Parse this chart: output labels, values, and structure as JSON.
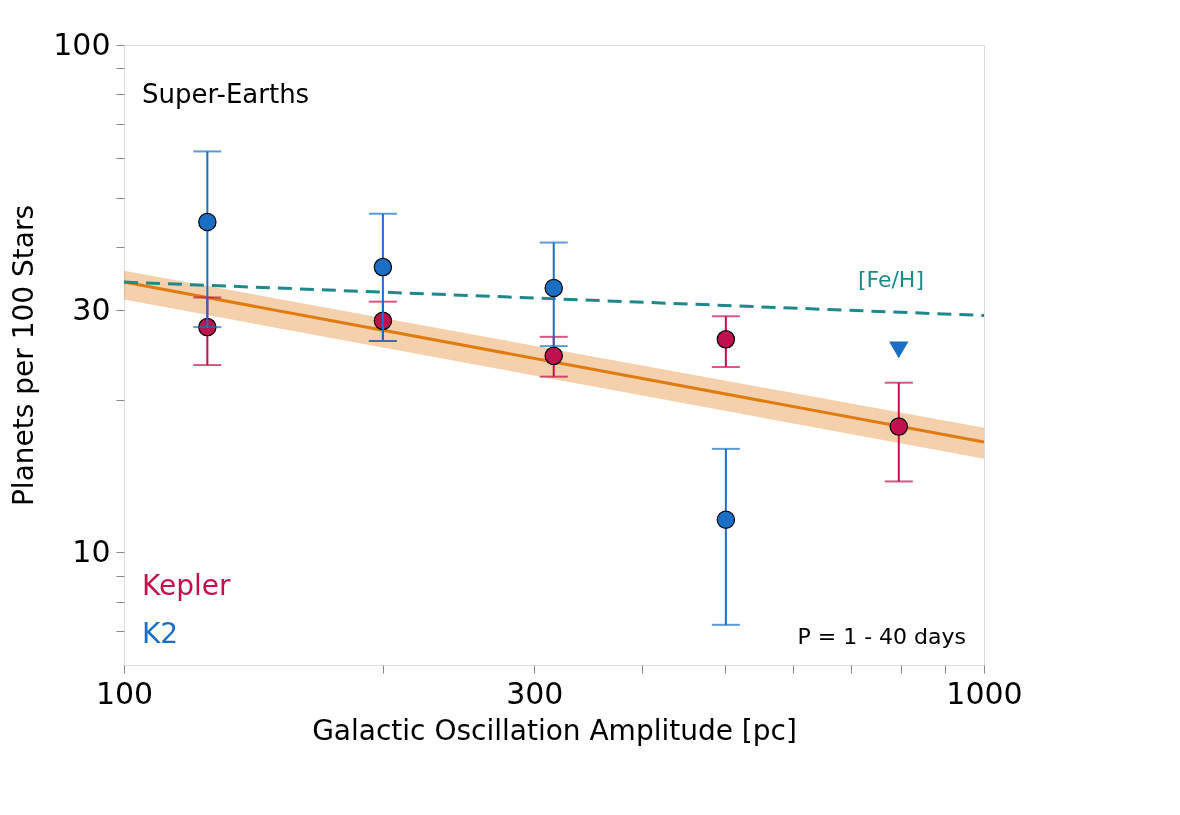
{
  "chart_data": {
    "type": "scatter",
    "xlabel": "Galactic Oscillation Amplitude [pc]",
    "ylabel": "Planets per 100 Stars",
    "log": "xy",
    "grid": false,
    "legend": "bottom left",
    "marker": "circle",
    "xlim": [
      100,
      1000
    ],
    "ylim": [
      6,
      100
    ],
    "xticks": [
      100,
      {
        "value": 200,
        "label": null
      },
      300,
      {
        "value": 400,
        "label": null
      },
      {
        "value": 500,
        "label": null
      },
      {
        "value": 600,
        "label": null
      },
      {
        "value": 700,
        "label": null
      },
      {
        "value": 800,
        "label": null
      },
      {
        "value": 900,
        "label": null
      },
      1000
    ],
    "yticks": [
      {
        "value": 7,
        "label": null
      },
      {
        "value": 8,
        "label": null
      },
      {
        "value": 9,
        "label": null
      },
      10,
      {
        "value": 20,
        "label": null
      },
      30,
      {
        "value": 40,
        "label": null
      },
      {
        "value": 50,
        "label": null
      },
      {
        "value": 60,
        "label": null
      },
      {
        "value": 70,
        "label": null
      },
      {
        "value": 80,
        "label": null
      },
      {
        "value": 90,
        "label": null
      },
      100
    ],
    "annotations": [
      "Super-Earths",
      "P = 1 - 40 days"
    ],
    "series": [
      {
        "type": "line",
        "line_style": "solid",
        "marker": "none",
        "color": "#e07b10",
        "x": [
          100,
          1000
        ],
        "values": [
          34.1,
          16.5
        ],
        "lower": [
          31.5,
          15.3
        ],
        "upper": [
          35.9,
          17.6
        ]
      },
      {
        "name": "[Fe/H]",
        "type": "line",
        "line_style": "dashed",
        "marker": "none",
        "color": "#20888a",
        "x": [
          100,
          1000
        ],
        "values": [
          34.1,
          29.3
        ]
      },
      {
        "name": "Kepler",
        "color": "#c0114f",
        "x": [
          125,
          200,
          316,
          501,
          796
        ],
        "values": [
          27.8,
          28.6,
          24.4,
          26.3,
          17.7
        ],
        "errors": [
          [
            23.4,
            31.8
          ],
          [
            26.1,
            31.2
          ],
          [
            22.2,
            26.6
          ],
          [
            23.2,
            29.2
          ],
          [
            13.8,
            21.6
          ]
        ]
      },
      {
        "name": "K2",
        "color": "#1a6fc4",
        "x": [
          125,
          200,
          316,
          501
        ],
        "values": [
          44.8,
          36.5,
          33.2,
          11.6
        ],
        "errors": [
          [
            27.8,
            61.7
          ],
          [
            26.1,
            46.5
          ],
          [
            25.5,
            40.8
          ],
          [
            7.2,
            16.0
          ]
        ]
      },
      {
        "marker": "triangle",
        "color": "#1a6fc4",
        "x": [
          796
        ],
        "values": [
          25.1
        ]
      }
    ]
  }
}
